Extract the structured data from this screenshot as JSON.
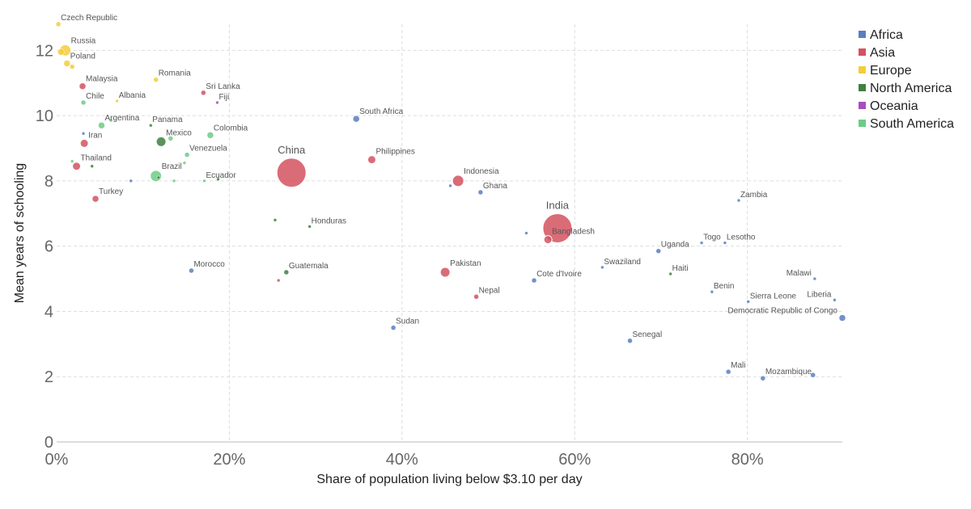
{
  "chart_data": {
    "type": "scatter",
    "title": "",
    "xlabel": "Share of population living below $3.10 per day",
    "ylabel": "Mean years of schooling",
    "xlim": [
      0,
      91
    ],
    "ylim": [
      0,
      12.8
    ],
    "x_ticks": [
      0,
      20,
      40,
      60,
      80
    ],
    "x_tick_labels": [
      "0%",
      "20%",
      "40%",
      "60%",
      "80%"
    ],
    "y_ticks": [
      0,
      2,
      4,
      6,
      8,
      10,
      12
    ],
    "y_tick_labels": [
      "0",
      "2",
      "4",
      "6",
      "8",
      "10",
      "12"
    ],
    "grid": true,
    "legend_position": "top-right",
    "categories": [
      {
        "name": "Africa",
        "color": "#5b7ec2"
      },
      {
        "name": "Asia",
        "color": "#d4525f"
      },
      {
        "name": "Europe",
        "color": "#f5cd3a"
      },
      {
        "name": "North America",
        "color": "#3f8040"
      },
      {
        "name": "Oceania",
        "color": "#a64fbf"
      },
      {
        "name": "South America",
        "color": "#6ccc85"
      }
    ],
    "points": [
      {
        "label": "Czech Republic",
        "region": "Europe",
        "x": 0.2,
        "y": 12.8,
        "size": 3
      },
      {
        "label": "Russia",
        "region": "Europe",
        "x": 1.0,
        "y": 12.0,
        "size": 7
      },
      {
        "label": "",
        "region": "Europe",
        "x": 0.5,
        "y": 11.95,
        "size": 4
      },
      {
        "label": "Poland",
        "region": "Europe",
        "x": 1.2,
        "y": 11.6,
        "size": 4
      },
      {
        "label": "",
        "region": "Europe",
        "x": 1.8,
        "y": 11.5,
        "size": 3
      },
      {
        "label": "Romania",
        "region": "Europe",
        "x": 11.5,
        "y": 11.1,
        "size": 3
      },
      {
        "label": "Albania",
        "region": "Europe",
        "x": 7.0,
        "y": 10.45,
        "size": 2
      },
      {
        "label": "Malaysia",
        "region": "Asia",
        "x": 3.0,
        "y": 10.9,
        "size": 4
      },
      {
        "label": "Sri Lanka",
        "region": "Asia",
        "x": 17.0,
        "y": 10.7,
        "size": 3
      },
      {
        "label": "Fiji",
        "region": "Oceania",
        "x": 18.6,
        "y": 10.4,
        "size": 2
      },
      {
        "label": "Chile",
        "region": "South America",
        "x": 3.1,
        "y": 10.4,
        "size": 3
      },
      {
        "label": "Argentina",
        "region": "South America",
        "x": 5.2,
        "y": 9.7,
        "size": 4
      },
      {
        "label": "",
        "region": "South America",
        "x": 6.3,
        "y": 9.85,
        "size": 2
      },
      {
        "label": "Panama",
        "region": "North America",
        "x": 10.9,
        "y": 9.7,
        "size": 2
      },
      {
        "label": "Iran",
        "region": "Asia",
        "x": 3.2,
        "y": 9.15,
        "size": 5
      },
      {
        "label": "",
        "region": "Africa",
        "x": 3.1,
        "y": 9.45,
        "size": 2
      },
      {
        "label": "Mexico",
        "region": "North America",
        "x": 12.1,
        "y": 9.2,
        "size": 6
      },
      {
        "label": "",
        "region": "South America",
        "x": 13.2,
        "y": 9.3,
        "size": 3
      },
      {
        "label": "Colombia",
        "region": "South America",
        "x": 17.8,
        "y": 9.4,
        "size": 4
      },
      {
        "label": "South Africa",
        "region": "Africa",
        "x": 34.7,
        "y": 9.9,
        "size": 4
      },
      {
        "label": "Thailand",
        "region": "Asia",
        "x": 2.3,
        "y": 8.45,
        "size": 5
      },
      {
        "label": "",
        "region": "South America",
        "x": 1.8,
        "y": 8.6,
        "size": 2
      },
      {
        "label": "",
        "region": "North America",
        "x": 4.1,
        "y": 8.45,
        "size": 2
      },
      {
        "label": "Venezuela",
        "region": "South America",
        "x": 15.1,
        "y": 8.8,
        "size": 3
      },
      {
        "label": "",
        "region": "South America",
        "x": 14.8,
        "y": 8.55,
        "size": 2
      },
      {
        "label": "Brazil",
        "region": "South America",
        "x": 11.5,
        "y": 8.15,
        "size": 7
      },
      {
        "label": "",
        "region": "North America",
        "x": 11.8,
        "y": 8.1,
        "size": 2
      },
      {
        "label": "",
        "region": "South America",
        "x": 13.6,
        "y": 8.0,
        "size": 2
      },
      {
        "label": "",
        "region": "Africa",
        "x": 8.6,
        "y": 8.0,
        "size": 2
      },
      {
        "label": "Ecuador",
        "region": "South America",
        "x": 17.1,
        "y": 8.0,
        "size": 2
      },
      {
        "label": "",
        "region": "North America",
        "x": 18.7,
        "y": 8.05,
        "size": 2
      },
      {
        "label": "China",
        "region": "Asia",
        "x": 27.2,
        "y": 8.25,
        "size": 18
      },
      {
        "label": "Philippines",
        "region": "Asia",
        "x": 36.5,
        "y": 8.65,
        "size": 5
      },
      {
        "label": "Indonesia",
        "region": "Asia",
        "x": 46.5,
        "y": 8.0,
        "size": 7
      },
      {
        "label": "",
        "region": "Africa",
        "x": 45.6,
        "y": 7.85,
        "size": 2
      },
      {
        "label": "Ghana",
        "region": "Africa",
        "x": 49.1,
        "y": 7.65,
        "size": 3
      },
      {
        "label": "Turkey",
        "region": "Asia",
        "x": 4.5,
        "y": 7.45,
        "size": 4
      },
      {
        "label": "",
        "region": "North America",
        "x": 25.3,
        "y": 6.8,
        "size": 2
      },
      {
        "label": "Honduras",
        "region": "North America",
        "x": 29.3,
        "y": 6.6,
        "size": 2
      },
      {
        "label": "Zambia",
        "region": "Africa",
        "x": 79.0,
        "y": 7.4,
        "size": 2
      },
      {
        "label": "India",
        "region": "Asia",
        "x": 58.0,
        "y": 6.55,
        "size": 18
      },
      {
        "label": "Bangladesh",
        "region": "Asia",
        "x": 56.9,
        "y": 6.2,
        "size": 5
      },
      {
        "label": "",
        "region": "Africa",
        "x": 54.4,
        "y": 6.4,
        "size": 2
      },
      {
        "label": "Togo",
        "region": "Africa",
        "x": 74.7,
        "y": 6.1,
        "size": 2
      },
      {
        "label": "Lesotho",
        "region": "Africa",
        "x": 77.4,
        "y": 6.1,
        "size": 2
      },
      {
        "label": "Uganda",
        "region": "Africa",
        "x": 69.7,
        "y": 5.85,
        "size": 3
      },
      {
        "label": "Swaziland",
        "region": "Africa",
        "x": 63.2,
        "y": 5.35,
        "size": 2
      },
      {
        "label": "Haiti",
        "region": "North America",
        "x": 71.1,
        "y": 5.15,
        "size": 2
      },
      {
        "label": "Malawi",
        "region": "Africa",
        "x": 87.8,
        "y": 5.0,
        "size": 2
      },
      {
        "label": "Morocco",
        "region": "Africa",
        "x": 15.6,
        "y": 5.25,
        "size": 3
      },
      {
        "label": "Guatemala",
        "region": "North America",
        "x": 26.6,
        "y": 5.2,
        "size": 3
      },
      {
        "label": "",
        "region": "Asia",
        "x": 25.7,
        "y": 4.95,
        "size": 2
      },
      {
        "label": "Pakistan",
        "region": "Asia",
        "x": 45.0,
        "y": 5.2,
        "size": 6
      },
      {
        "label": "Cote d'Ivoire",
        "region": "Africa",
        "x": 55.3,
        "y": 4.95,
        "size": 3
      },
      {
        "label": "Benin",
        "region": "Africa",
        "x": 75.9,
        "y": 4.6,
        "size": 2
      },
      {
        "label": "Nepal",
        "region": "Asia",
        "x": 48.6,
        "y": 4.45,
        "size": 3
      },
      {
        "label": "Sierra Leone",
        "region": "Africa",
        "x": 80.1,
        "y": 4.3,
        "size": 2
      },
      {
        "label": "Liberia",
        "region": "Africa",
        "x": 90.1,
        "y": 4.35,
        "size": 2
      },
      {
        "label": "Democratic Republic of Congo",
        "region": "Africa",
        "x": 91.0,
        "y": 3.8,
        "size": 4
      },
      {
        "label": "Sudan",
        "region": "Africa",
        "x": 39.0,
        "y": 3.5,
        "size": 3
      },
      {
        "label": "Senegal",
        "region": "Africa",
        "x": 66.4,
        "y": 3.1,
        "size": 3
      },
      {
        "label": "Mali",
        "region": "Africa",
        "x": 77.8,
        "y": 2.15,
        "size": 3
      },
      {
        "label": "Mozambique",
        "region": "Africa",
        "x": 81.8,
        "y": 1.95,
        "size": 3
      },
      {
        "label": "",
        "region": "Africa",
        "x": 87.6,
        "y": 2.05,
        "size": 3
      }
    ]
  }
}
